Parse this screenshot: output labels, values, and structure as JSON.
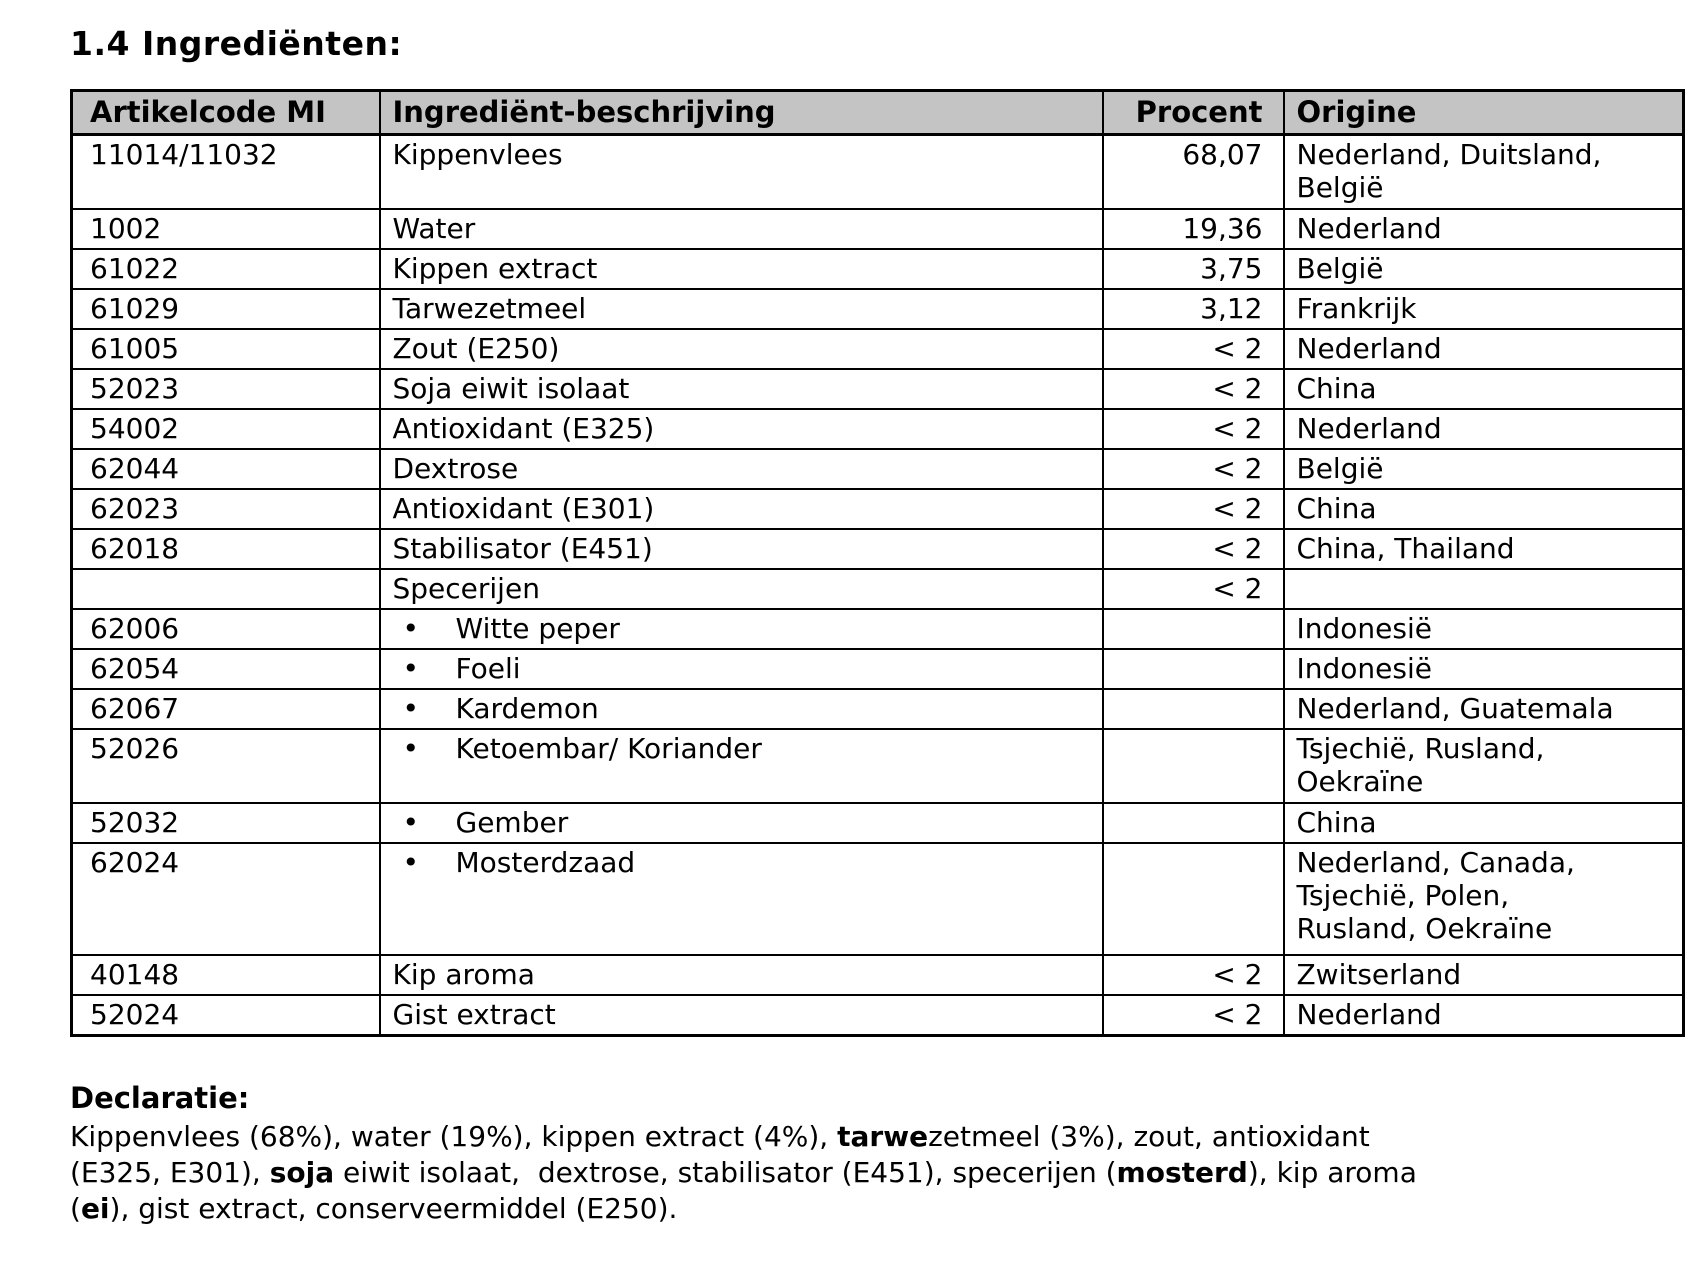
{
  "page": {
    "title": "1.4 Ingrediënten:"
  },
  "colors": {
    "header_bg": "#c4c4c4",
    "border": "#000000",
    "text": "#000000"
  },
  "table": {
    "headers": [
      "Artikelcode MI",
      "Ingrediënt-beschrijving",
      "Procent",
      "Origine"
    ],
    "rows": [
      {
        "code": "11014/11032",
        "description": "Kippenvlees",
        "bullet": false,
        "procent": "68,07",
        "origine": "Nederland, Duitsland,\nBelgië",
        "lines": 2
      },
      {
        "code": "1002",
        "description": "Water",
        "bullet": false,
        "procent": "19,36",
        "origine": "Nederland",
        "lines": 1
      },
      {
        "code": "61022",
        "description": "Kippen extract",
        "bullet": false,
        "procent": "3,75",
        "origine": "België",
        "lines": 1
      },
      {
        "code": "61029",
        "description": "Tarwezetmeel",
        "bullet": false,
        "procent": "3,12",
        "origine": "Frankrijk",
        "lines": 1
      },
      {
        "code": "61005",
        "description": "Zout (E250)",
        "bullet": false,
        "procent": "< 2",
        "origine": "Nederland",
        "lines": 1
      },
      {
        "code": "52023",
        "description": "Soja eiwit isolaat",
        "bullet": false,
        "procent": "< 2",
        "origine": "China",
        "lines": 1
      },
      {
        "code": "54002",
        "description": "Antioxidant (E325)",
        "bullet": false,
        "procent": "< 2",
        "origine": "Nederland",
        "lines": 1
      },
      {
        "code": "62044",
        "description": "Dextrose",
        "bullet": false,
        "procent": "< 2",
        "origine": "België",
        "lines": 1
      },
      {
        "code": "62023",
        "description": "Antioxidant (E301)",
        "bullet": false,
        "procent": "< 2",
        "origine": "China",
        "lines": 1
      },
      {
        "code": "62018",
        "description": "Stabilisator (E451)",
        "bullet": false,
        "procent": "< 2",
        "origine": "China, Thailand",
        "lines": 1
      },
      {
        "code": "",
        "description": "Specerijen",
        "bullet": false,
        "procent": "< 2",
        "origine": "",
        "lines": 1
      },
      {
        "code": "62006",
        "description": "Witte peper",
        "bullet": true,
        "procent": "",
        "origine": "Indonesië",
        "lines": 1
      },
      {
        "code": "62054",
        "description": "Foeli",
        "bullet": true,
        "procent": "",
        "origine": "Indonesië",
        "lines": 1
      },
      {
        "code": "62067",
        "description": "Kardemon",
        "bullet": true,
        "procent": "",
        "origine": "Nederland, Guatemala",
        "lines": 1
      },
      {
        "code": "52026",
        "description": "Ketoembar/ Koriander",
        "bullet": true,
        "procent": "",
        "origine": "Tsjechië, Rusland,\nOekraïne",
        "lines": 2
      },
      {
        "code": "52032",
        "description": "Gember",
        "bullet": true,
        "procent": "",
        "origine": "China",
        "lines": 1
      },
      {
        "code": "62024",
        "description": "Mosterdzaad",
        "bullet": true,
        "procent": "",
        "origine": "Nederland, Canada,\nTsjechië, Polen,\nRusland, Oekraïne",
        "lines": 3
      },
      {
        "code": "40148",
        "description": "Kip aroma",
        "bullet": false,
        "procent": "< 2",
        "origine": "Zwitserland",
        "lines": 1
      },
      {
        "code": "52024",
        "description": "Gist extract",
        "bullet": false,
        "procent": "< 2",
        "origine": "Nederland",
        "lines": 1
      }
    ]
  },
  "declaration": {
    "heading": "Declaratie:",
    "segments": [
      {
        "text": "Kippenvlees (68%), water (19%), kippen extract (4%), ",
        "bold": false
      },
      {
        "text": "tarwe",
        "bold": true
      },
      {
        "text": "zetmeel (3%), zout, antioxidant\n(E325, E301), ",
        "bold": false
      },
      {
        "text": "soja",
        "bold": true
      },
      {
        "text": " eiwit isolaat,  dextrose, stabilisator (E451), specerijen (",
        "bold": false
      },
      {
        "text": "mosterd",
        "bold": true
      },
      {
        "text": "), kip aroma\n(",
        "bold": false
      },
      {
        "text": "ei",
        "bold": true
      },
      {
        "text": "), gist extract, conserveermiddel (E250).",
        "bold": false
      }
    ]
  }
}
